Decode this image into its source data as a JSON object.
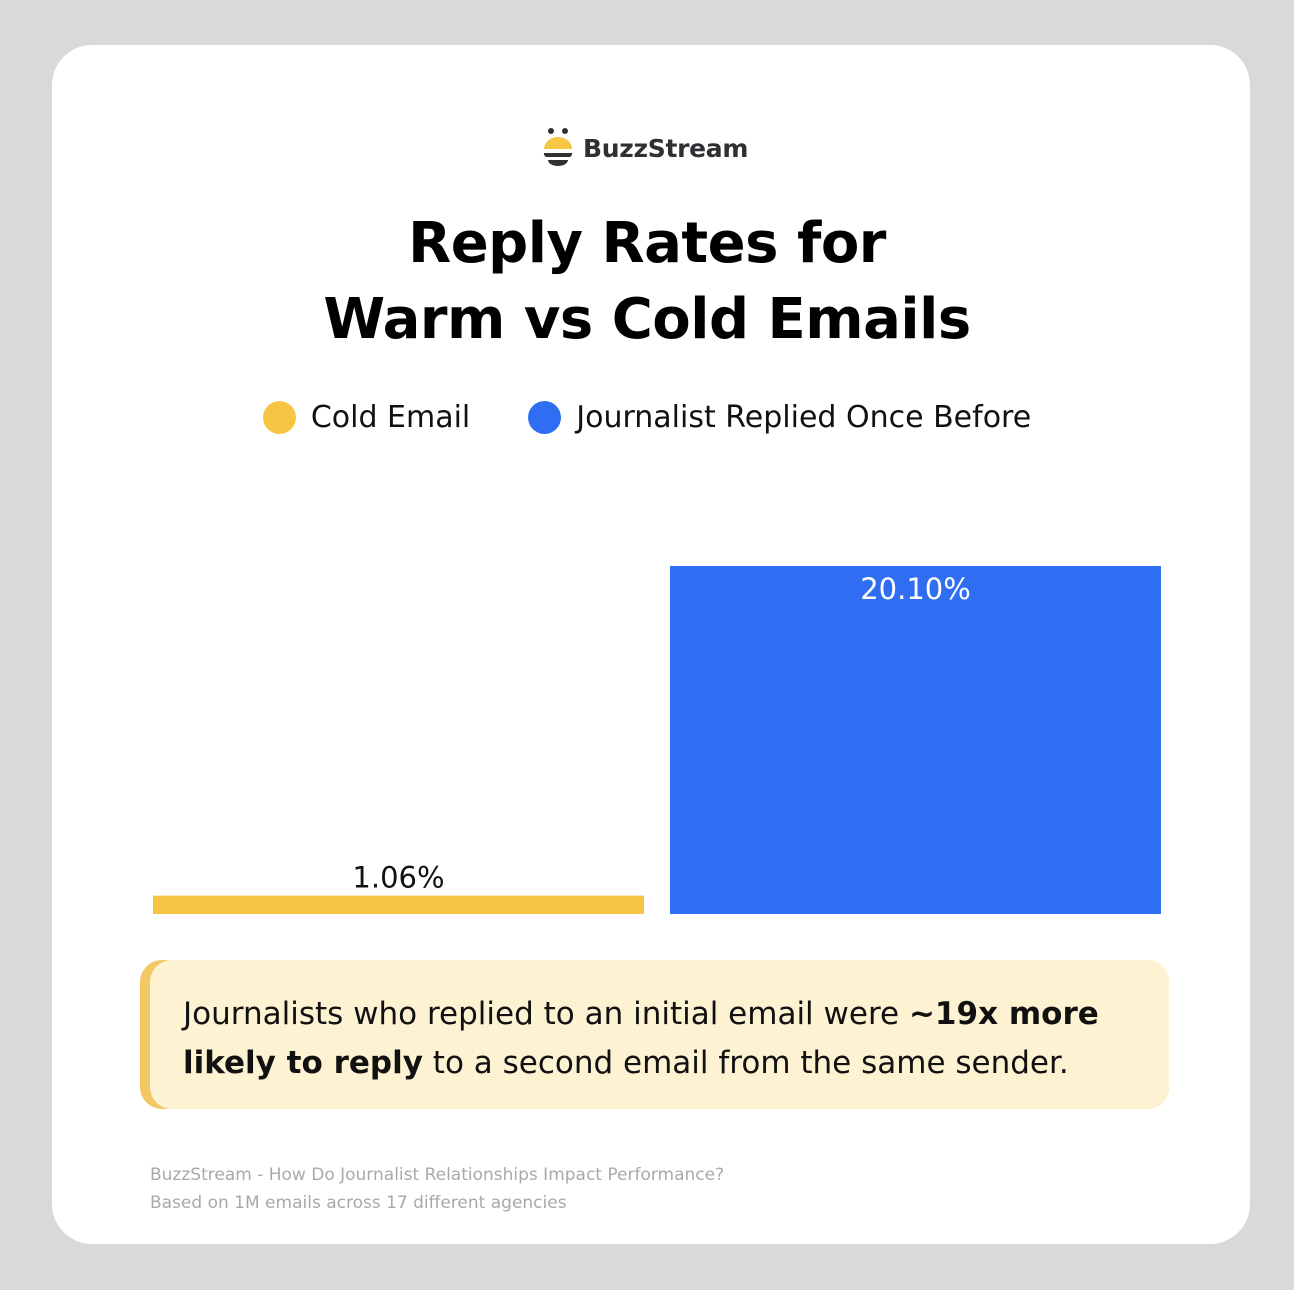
{
  "brand": {
    "name": "BuzzStream",
    "logo_colors": {
      "yellow": "#f7c744",
      "dark": "#2f3033"
    }
  },
  "chart_data": {
    "type": "bar",
    "title": "Reply Rates for Warm vs Cold Emails",
    "title_lines": [
      "Reply Rates for",
      "Warm vs Cold Emails"
    ],
    "categories": [
      "Cold Email",
      "Journalist Replied Once Before"
    ],
    "values": [
      1.06,
      20.1
    ],
    "data_labels": [
      "1.06%",
      "20.10%"
    ],
    "colors": [
      "#f7c544",
      "#2f6ef2"
    ],
    "legend": [
      {
        "label": "Cold Email",
        "color": "#f7c544"
      },
      {
        "label": "Journalist Replied Once Before",
        "color": "#2f6ef2"
      }
    ],
    "legend_position": "top",
    "xlabel": "",
    "ylabel": "",
    "ylim": [
      0,
      20.1
    ],
    "grid": false,
    "axes_visible": false
  },
  "callout": {
    "part1": "Journalists who replied to an initial email were ",
    "bold": "~19x more likely to reply",
    "part2": " to a second email from the same sender."
  },
  "footer": {
    "line1": "BuzzStream - How Do Journalist Relationships Impact Performance?",
    "line2": "Based on 1M emails across 17 different agencies"
  }
}
